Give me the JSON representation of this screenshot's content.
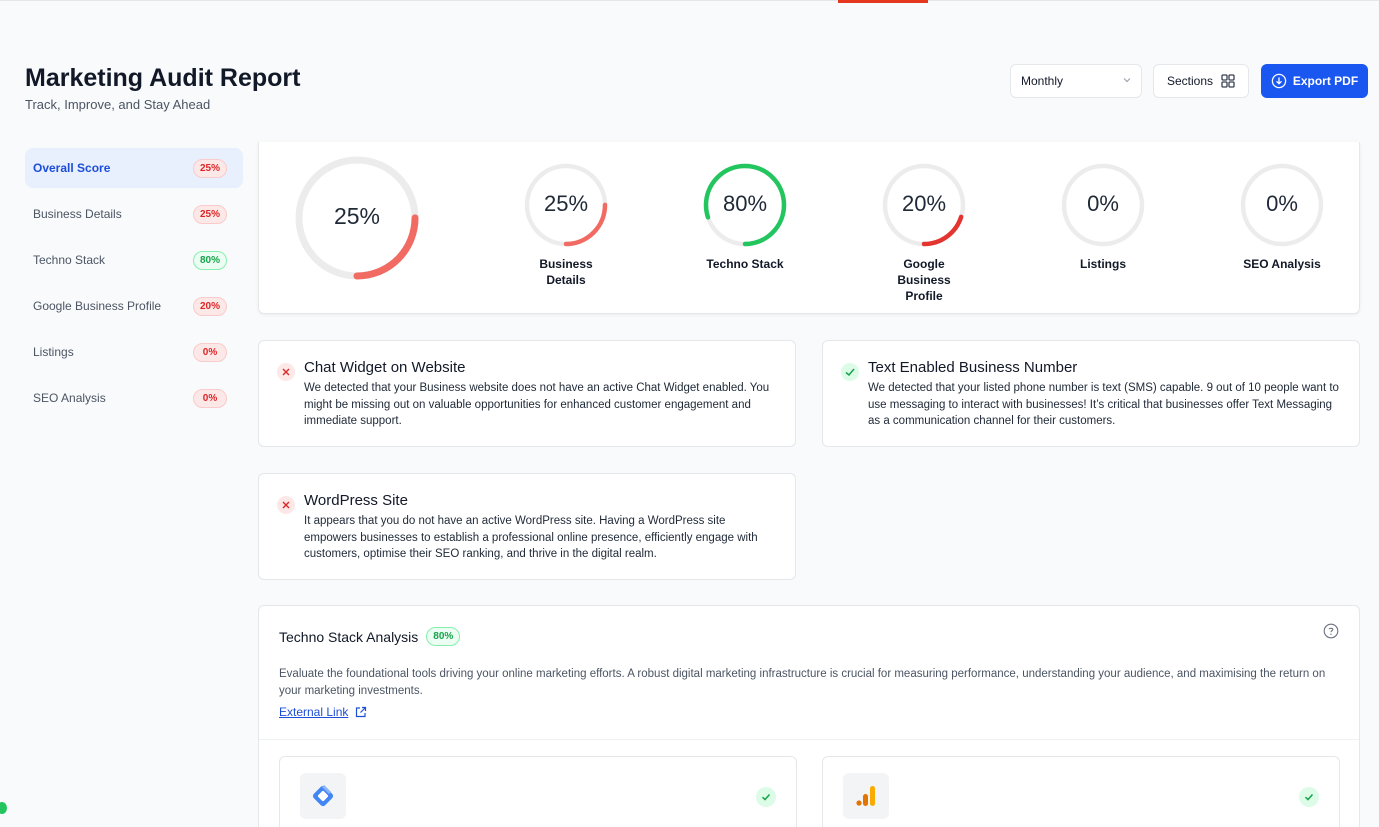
{
  "header": {
    "title": "Marketing Audit Report",
    "subtitle": "Track, Improve, and Stay Ahead",
    "period_select": "Monthly",
    "sections_label": "Sections",
    "export_label": "Export PDF"
  },
  "sidebar": {
    "items": [
      {
        "label": "Overall Score",
        "badge": "25%",
        "status": "red",
        "active": true
      },
      {
        "label": "Business Details",
        "badge": "25%",
        "status": "red"
      },
      {
        "label": "Techno Stack",
        "badge": "80%",
        "status": "green"
      },
      {
        "label": "Google Business Profile",
        "badge": "20%",
        "status": "red"
      },
      {
        "label": "Listings",
        "badge": "0%",
        "status": "red"
      },
      {
        "label": "SEO Analysis",
        "badge": "0%",
        "status": "red"
      }
    ]
  },
  "scores": {
    "overall": {
      "value": "25%",
      "percent": 25,
      "color": "#f26b62"
    },
    "gauges": [
      {
        "label": "Business Details",
        "value": "25%",
        "percent": 25,
        "color": "#f26b62"
      },
      {
        "label": "Techno Stack",
        "value": "80%",
        "percent": 80,
        "color": "#22c55e"
      },
      {
        "label": "Google Business Profile",
        "value": "20%",
        "percent": 20,
        "color": "#e3342f"
      },
      {
        "label": "Listings",
        "value": "0%",
        "percent": 0,
        "color": "#f26b62"
      },
      {
        "label": "SEO Analysis",
        "value": "0%",
        "percent": 0,
        "color": "#f26b62"
      }
    ]
  },
  "findings": [
    {
      "title": "Chat Widget on Website",
      "status": "fail",
      "text": "We detected that your Business website does not have an active Chat Widget enabled. You might be missing out on valuable opportunities for enhanced customer engagement and immediate support."
    },
    {
      "title": "Text Enabled Business Number",
      "status": "pass",
      "text": "We detected that your listed phone number is text (SMS) capable. 9 out of 10 people want to use messaging to interact with businesses! It’s critical that businesses offer Text Messaging as a communication channel for their customers."
    },
    {
      "title": "WordPress Site",
      "status": "fail",
      "text": "It appears that you do not have an active WordPress site. Having a WordPress site empowers businesses to establish a professional online presence, efficiently engage with customers, optimise their SEO ranking, and thrive in the digital realm."
    }
  ],
  "techno_stack": {
    "title": "Techno Stack Analysis",
    "badge": "80%",
    "description": "Evaluate the foundational tools driving your online marketing efforts. A robust digital marketing infrastructure is crucial for measuring performance, understanding your audience, and maximising the return on your marketing investments.",
    "link_label": "External Link",
    "tools": [
      {
        "icon": "tag-manager-logo-icon",
        "status": "pass"
      },
      {
        "icon": "analytics-logo-icon",
        "status": "pass"
      }
    ]
  },
  "colors": {
    "accent": "#1a56f0",
    "fail": "#dc2626",
    "pass": "#16a34a",
    "track": "#ececec"
  }
}
